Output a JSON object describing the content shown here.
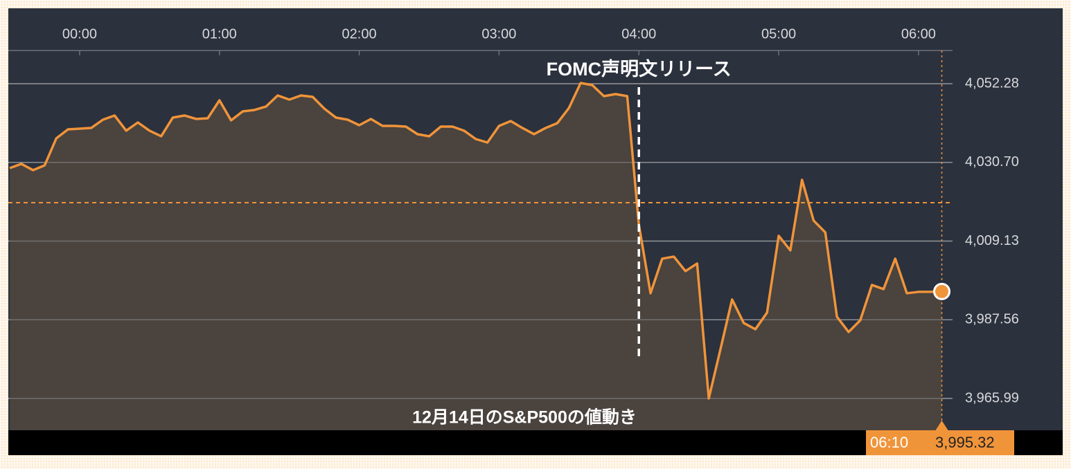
{
  "chart_data": {
    "type": "area",
    "title": "12月14日のS&P500の値動き",
    "annotation": {
      "text": "FOMC声明文リリース",
      "x": 240
    },
    "cursor": {
      "x_label": "06:10",
      "value_label": "3,995.32"
    },
    "color": "#f0943a",
    "fill": "#4a433e",
    "reference_line": 4019.67,
    "x": [
      -30,
      -25,
      -20,
      -15,
      -10,
      -5,
      0,
      5,
      10,
      15,
      20,
      25,
      30,
      35,
      40,
      45,
      50,
      55,
      60,
      65,
      70,
      75,
      80,
      85,
      90,
      95,
      100,
      105,
      110,
      115,
      120,
      125,
      130,
      135,
      140,
      145,
      150,
      155,
      160,
      165,
      170,
      175,
      180,
      185,
      190,
      195,
      200,
      205,
      210,
      215,
      220,
      225,
      230,
      235,
      240,
      245,
      250,
      255,
      260,
      265,
      270,
      275,
      280,
      285,
      290,
      295,
      300,
      305,
      310,
      315,
      320,
      325,
      330,
      335,
      340,
      345,
      350,
      355,
      360,
      365,
      370
    ],
    "values": [
      4029.15,
      4030.29,
      4028.58,
      4029.91,
      4037.3,
      4039.77,
      4039.96,
      4040.15,
      4042.42,
      4043.56,
      4039.39,
      4041.66,
      4039.39,
      4037.87,
      4042.99,
      4043.56,
      4042.61,
      4042.8,
      4047.73,
      4042.23,
      4044.7,
      4045.08,
      4046.02,
      4049.06,
      4047.92,
      4049.06,
      4048.68,
      4045.45,
      4042.99,
      4042.42,
      4040.9,
      4042.61,
      4040.71,
      4040.71,
      4040.52,
      4038.44,
      4037.87,
      4040.52,
      4040.52,
      4039.39,
      4037.11,
      4036.16,
      4040.71,
      4042.04,
      4040.15,
      4038.44,
      4040.15,
      4041.47,
      4045.64,
      4052.47,
      4051.9,
      4048.87,
      4049.44,
      4048.87,
      4013.6,
      3994.83,
      4004.31,
      4004.88,
      4000.9,
      4002.98,
      3965.99,
      3979.47,
      3993.12,
      3986.68,
      3984.97,
      3989.52,
      4010.57,
      4006.59,
      4025.92,
      4014.74,
      4011.52,
      3988.38,
      3984.21,
      3987.43,
      3997.11,
      3995.97,
      4004.31,
      3994.83,
      3995.21,
      3995.21,
      3995.32
    ],
    "xlim": [
      -30.6,
      374.6
    ],
    "xticks": [
      {
        "value": 0,
        "label": "00:00"
      },
      {
        "value": 60,
        "label": "01:00"
      },
      {
        "value": 120,
        "label": "02:00"
      },
      {
        "value": 180,
        "label": "03:00"
      },
      {
        "value": 240,
        "label": "04:00"
      },
      {
        "value": 300,
        "label": "05:00"
      },
      {
        "value": 360,
        "label": "06:00"
      }
    ],
    "ylim": [
      3957.27,
      4072.95
    ],
    "yticks": [
      {
        "value": 4052.28,
        "label": "4,052.28"
      },
      {
        "value": 4030.7,
        "label": "4,030.70"
      },
      {
        "value": 4009.13,
        "label": "4,009.13"
      },
      {
        "value": 3987.56,
        "label": "3,987.56"
      },
      {
        "value": 3965.99,
        "label": "3,965.99"
      }
    ],
    "grid": true
  }
}
